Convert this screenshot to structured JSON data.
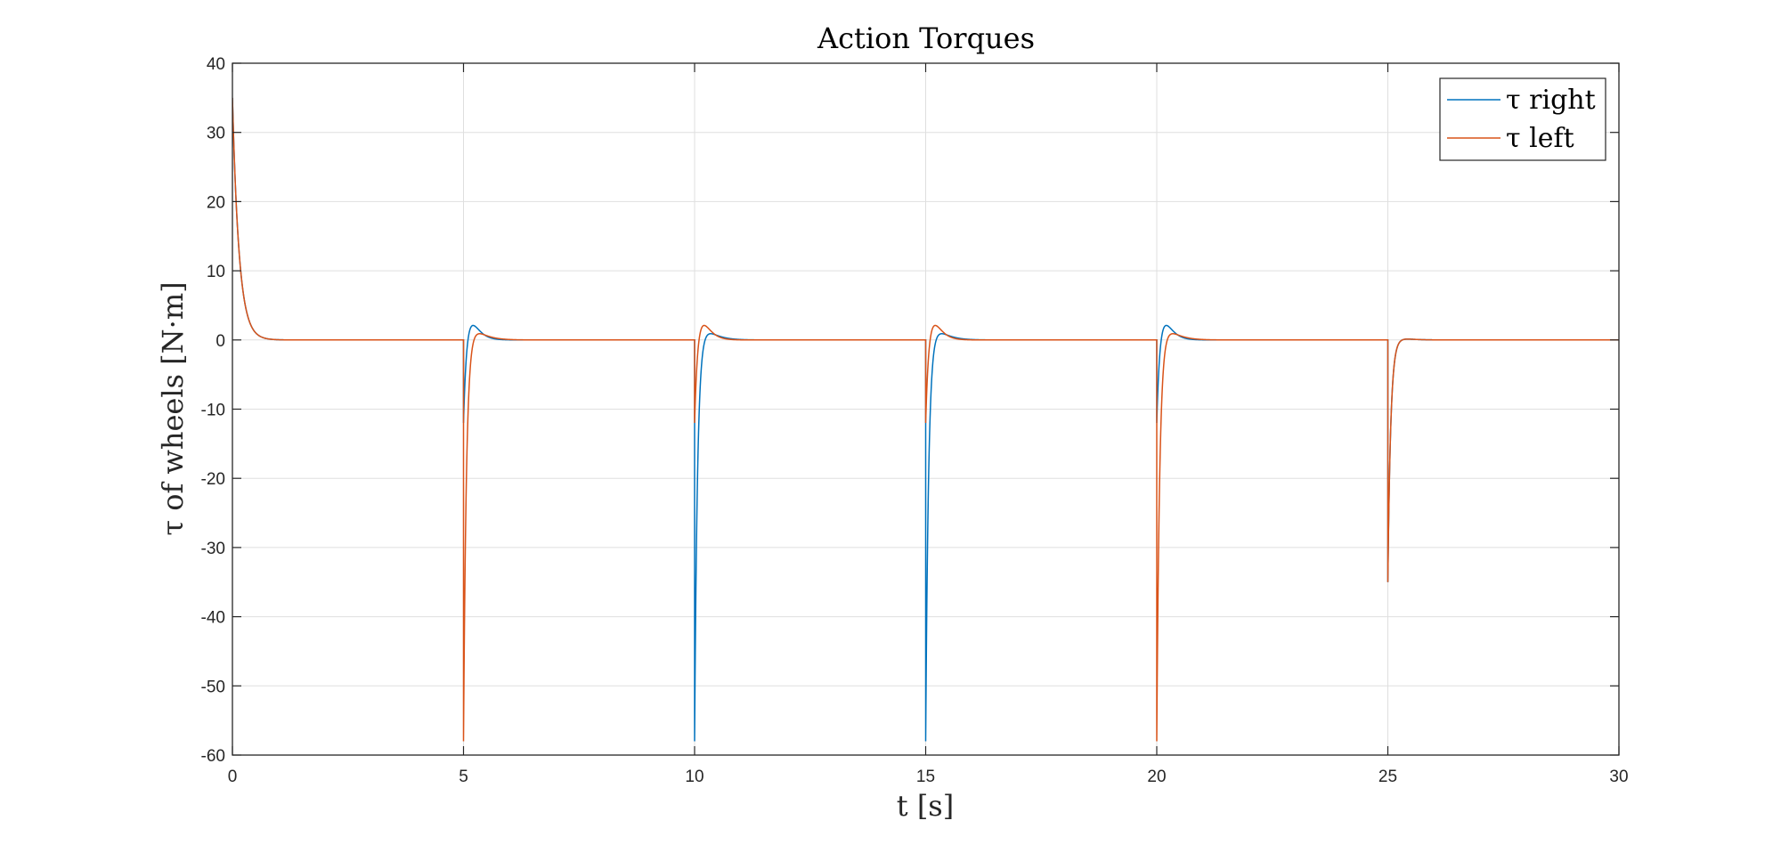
{
  "chart_data": {
    "type": "line",
    "title": "Action Torques",
    "xlabel": "t [s]",
    "ylabel": "τ of wheels [N·m]",
    "xlim": [
      0,
      30
    ],
    "ylim": [
      -60,
      40
    ],
    "xticks": [
      0,
      5,
      10,
      15,
      20,
      25,
      30
    ],
    "yticks": [
      40,
      30,
      20,
      10,
      0,
      -10,
      -20,
      -30,
      -40,
      -50,
      -60
    ],
    "grid": true,
    "legend": "top-right",
    "series": [
      {
        "name": "τ right",
        "color": "#0072BD",
        "initial": 35,
        "events": [
          {
            "t": 5,
            "jump": -12,
            "overshoot": 4.6
          },
          {
            "t": 10,
            "jump": -58,
            "overshoot": 1.6
          },
          {
            "t": 15,
            "jump": -58,
            "overshoot": 1.6
          },
          {
            "t": 20,
            "jump": -12,
            "overshoot": 4.6
          },
          {
            "t": 25,
            "jump": -35,
            "overshoot": 0.3
          }
        ]
      },
      {
        "name": "τ left",
        "color": "#D95319",
        "initial": 35,
        "events": [
          {
            "t": 5,
            "jump": -58,
            "overshoot": 1.6
          },
          {
            "t": 10,
            "jump": -12,
            "overshoot": 4.6
          },
          {
            "t": 15,
            "jump": -12,
            "overshoot": 4.6
          },
          {
            "t": 20,
            "jump": -58,
            "overshoot": 1.6
          },
          {
            "t": 25,
            "jump": -35,
            "overshoot": 0.3
          }
        ]
      }
    ]
  }
}
